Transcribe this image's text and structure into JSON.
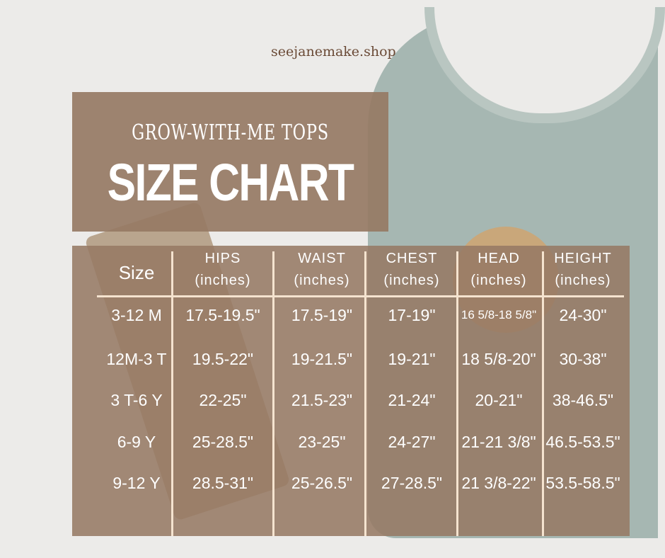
{
  "brand": "seejanemake.shop",
  "subtitle": "GROW-WITH-ME TOPS",
  "title": "SIZE CHART",
  "table": {
    "size_header": "Size",
    "columns": [
      {
        "name": "HIPS",
        "unit": "(inches)"
      },
      {
        "name": "WAIST",
        "unit": "(inches)"
      },
      {
        "name": "CHEST",
        "unit": "(inches)"
      },
      {
        "name": "HEAD",
        "unit": "(inches)"
      },
      {
        "name": "HEIGHT",
        "unit": "(inches)"
      }
    ],
    "rows": [
      {
        "size": "3-12 M",
        "values": [
          "17.5-19.5\"",
          "17.5-19\"",
          "17-19\"",
          "16 5/8-18 5/8\"",
          "24-30\""
        ]
      },
      {
        "size": "12M-3 T",
        "values": [
          "19.5-22\"",
          "19-21.5\"",
          "19-21\"",
          "18 5/8-20\"",
          "30-38\""
        ]
      },
      {
        "size": "3 T-6 Y",
        "values": [
          "22-25\"",
          "21.5-23\"",
          "21-24\"",
          "20-21\"",
          "38-46.5\""
        ]
      },
      {
        "size": "6-9 Y",
        "values": [
          "25-28.5\"",
          "23-25\"",
          "24-27\"",
          "21-21 3/8\"",
          "46.5-53.5\""
        ]
      },
      {
        "size": "9-12 Y",
        "values": [
          "28.5-31\"",
          "25-26.5\"",
          "27-28.5\"",
          "21 3/8-22\"",
          "53.5-58.5\""
        ]
      }
    ]
  },
  "colors": {
    "panel": "#967a64",
    "lines": "#f5e3cf",
    "brand": "#6a4a36"
  }
}
